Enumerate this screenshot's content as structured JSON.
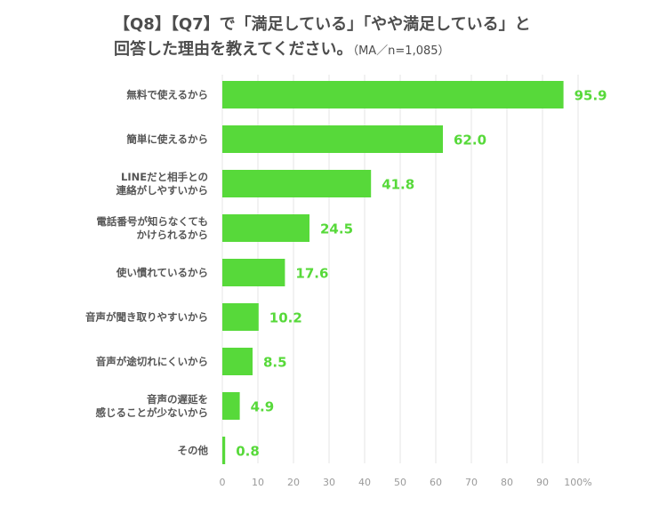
{
  "chart_data": {
    "type": "bar",
    "orientation": "horizontal",
    "title_line1": "【Q8】【Q7】で「満足している」「やや満足している」と",
    "title_line2": "回答した理由を教えてください。",
    "title_note": "（MA／n=1,085）",
    "categories": [
      [
        "無料で使えるから"
      ],
      [
        "簡単に使えるから"
      ],
      [
        "LINEだと相手との",
        "連絡がしやすいから"
      ],
      [
        "電話番号が知らなくても",
        "かけられるから"
      ],
      [
        "使い慣れているから"
      ],
      [
        "音声が聞き取りやすいから"
      ],
      [
        "音声が途切れにくいから"
      ],
      [
        "音声の遅延を",
        "感じることが少ないから"
      ],
      [
        "その他"
      ]
    ],
    "value_labels": [
      "95.9",
      "62.0",
      "41.8",
      "24.5",
      "17.6",
      "10.2",
      "8.5",
      "4.9",
      "0.8"
    ],
    "values": [
      95.9,
      62.0,
      41.8,
      24.5,
      17.6,
      10.2,
      8.5,
      4.9,
      0.8
    ],
    "xlim": [
      0,
      100
    ],
    "xticks": [
      "0",
      "10",
      "20",
      "30",
      "40",
      "50",
      "60",
      "70",
      "80",
      "90",
      "100%"
    ],
    "grid": true,
    "bar_color": "#57d93a",
    "value_color": "#57d93a",
    "grid_color": "#e6e6e6"
  }
}
